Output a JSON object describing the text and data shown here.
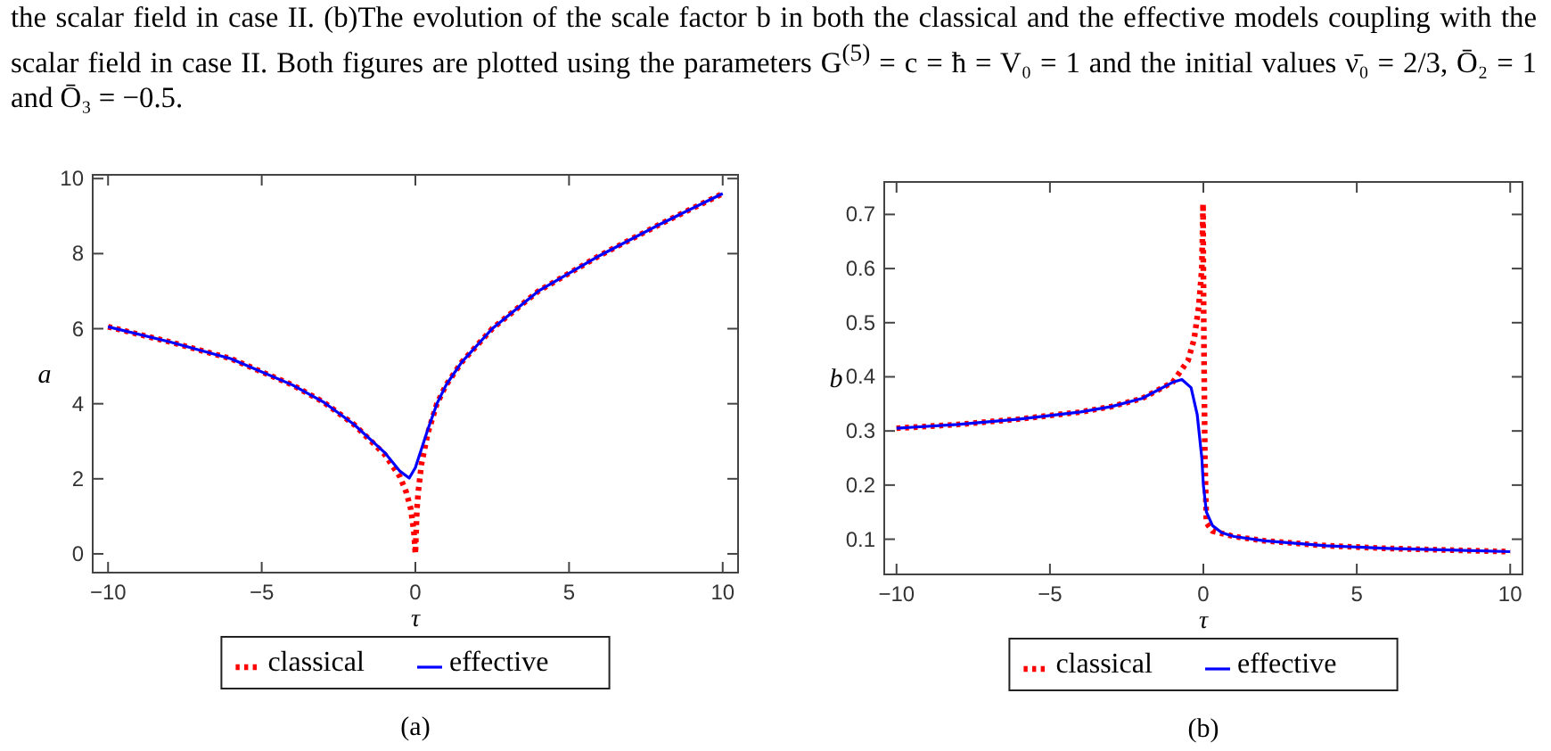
{
  "chart_data": [
    {
      "type": "line",
      "annotations": [
        "the scalar field in case II. (b)The evolution of the scale factor b in both the classical and the effective models coupling with the scalar field in case II. Both figures are plotted using the parameters G$^{(5)}$ = c = ħ = V₀ = 1 and the initial values ν̄₀ = 2/3, Ō₂ = 1 and Ō₃ = −0.5."
      ],
      "subtitle": "(a)",
      "xlabel": "τ",
      "ylabel": "a",
      "xlim": [
        -10.5,
        10.5
      ],
      "ylim": [
        -0.5,
        10.1
      ],
      "xticks": [
        -10,
        -5,
        0,
        5,
        10
      ],
      "yticks": [
        0,
        2,
        4,
        6,
        8,
        10
      ],
      "legend": "bottom",
      "marker": "none",
      "series": [
        {
          "name": "classical",
          "color": "#ff0000",
          "line_style": "dotted",
          "x": [
            -10,
            -8,
            -6,
            -4,
            -3,
            -2,
            -1,
            -0.5,
            -0.3,
            -0.15,
            -0.05,
            0,
            0.05,
            0.1,
            0.2,
            0.4,
            0.7,
            1,
            1.5,
            2.5,
            4,
            6,
            8,
            10
          ],
          "values": [
            6.05,
            5.65,
            5.2,
            4.5,
            4.05,
            3.45,
            2.65,
            2.05,
            1.65,
            1.2,
            0.6,
            0,
            1.2,
            1.7,
            2.4,
            3.2,
            4.0,
            4.5,
            5.1,
            6.0,
            7.0,
            7.95,
            8.8,
            9.6
          ]
        },
        {
          "name": "effective",
          "color": "#0000ff",
          "line_style": "solid",
          "x": [
            -10,
            -8,
            -6,
            -4,
            -3,
            -2,
            -1,
            -0.5,
            -0.2,
            0,
            0.2,
            0.4,
            0.7,
            1,
            1.5,
            2.5,
            4,
            6,
            8,
            10
          ],
          "values": [
            6.05,
            5.65,
            5.2,
            4.5,
            4.05,
            3.45,
            2.7,
            2.2,
            2.02,
            2.3,
            2.8,
            3.3,
            4.0,
            4.5,
            5.1,
            6.0,
            7.0,
            7.95,
            8.8,
            9.6
          ]
        }
      ]
    },
    {
      "type": "line",
      "subtitle": "(b)",
      "xlabel": "τ",
      "ylabel": "b",
      "xlim": [
        -10.4,
        10.4
      ],
      "ylim": [
        0.035,
        0.76
      ],
      "xticks": [
        -10,
        -5,
        0,
        5,
        10
      ],
      "yticks": [
        0.1,
        0.2,
        0.3,
        0.4,
        0.5,
        0.6,
        0.7
      ],
      "legend": "bottom",
      "marker": "none",
      "series": [
        {
          "name": "classical",
          "color": "#ff0000",
          "line_style": "dotted",
          "x": [
            -10,
            -8,
            -6,
            -4,
            -3,
            -2,
            -1,
            -0.5,
            -0.3,
            -0.15,
            -0.05,
            -0.01,
            0,
            0.02,
            0.05,
            0.1,
            0.3,
            1,
            2,
            4,
            6,
            8,
            10
          ],
          "values": [
            0.305,
            0.312,
            0.322,
            0.335,
            0.345,
            0.36,
            0.39,
            0.43,
            0.47,
            0.53,
            0.6,
            0.72,
            0.6,
            0.45,
            0.25,
            0.13,
            0.115,
            0.105,
            0.097,
            0.088,
            0.083,
            0.08,
            0.077
          ]
        },
        {
          "name": "effective",
          "color": "#0000ff",
          "line_style": "solid",
          "x": [
            -10,
            -8,
            -6,
            -4,
            -3,
            -2,
            -1,
            -0.7,
            -0.4,
            -0.2,
            -0.05,
            0,
            0.1,
            0.3,
            0.6,
            1,
            2,
            4,
            6,
            8,
            10
          ],
          "values": [
            0.305,
            0.312,
            0.322,
            0.335,
            0.345,
            0.36,
            0.39,
            0.395,
            0.38,
            0.33,
            0.25,
            0.2,
            0.15,
            0.125,
            0.112,
            0.105,
            0.097,
            0.088,
            0.083,
            0.08,
            0.077
          ]
        }
      ]
    }
  ]
}
